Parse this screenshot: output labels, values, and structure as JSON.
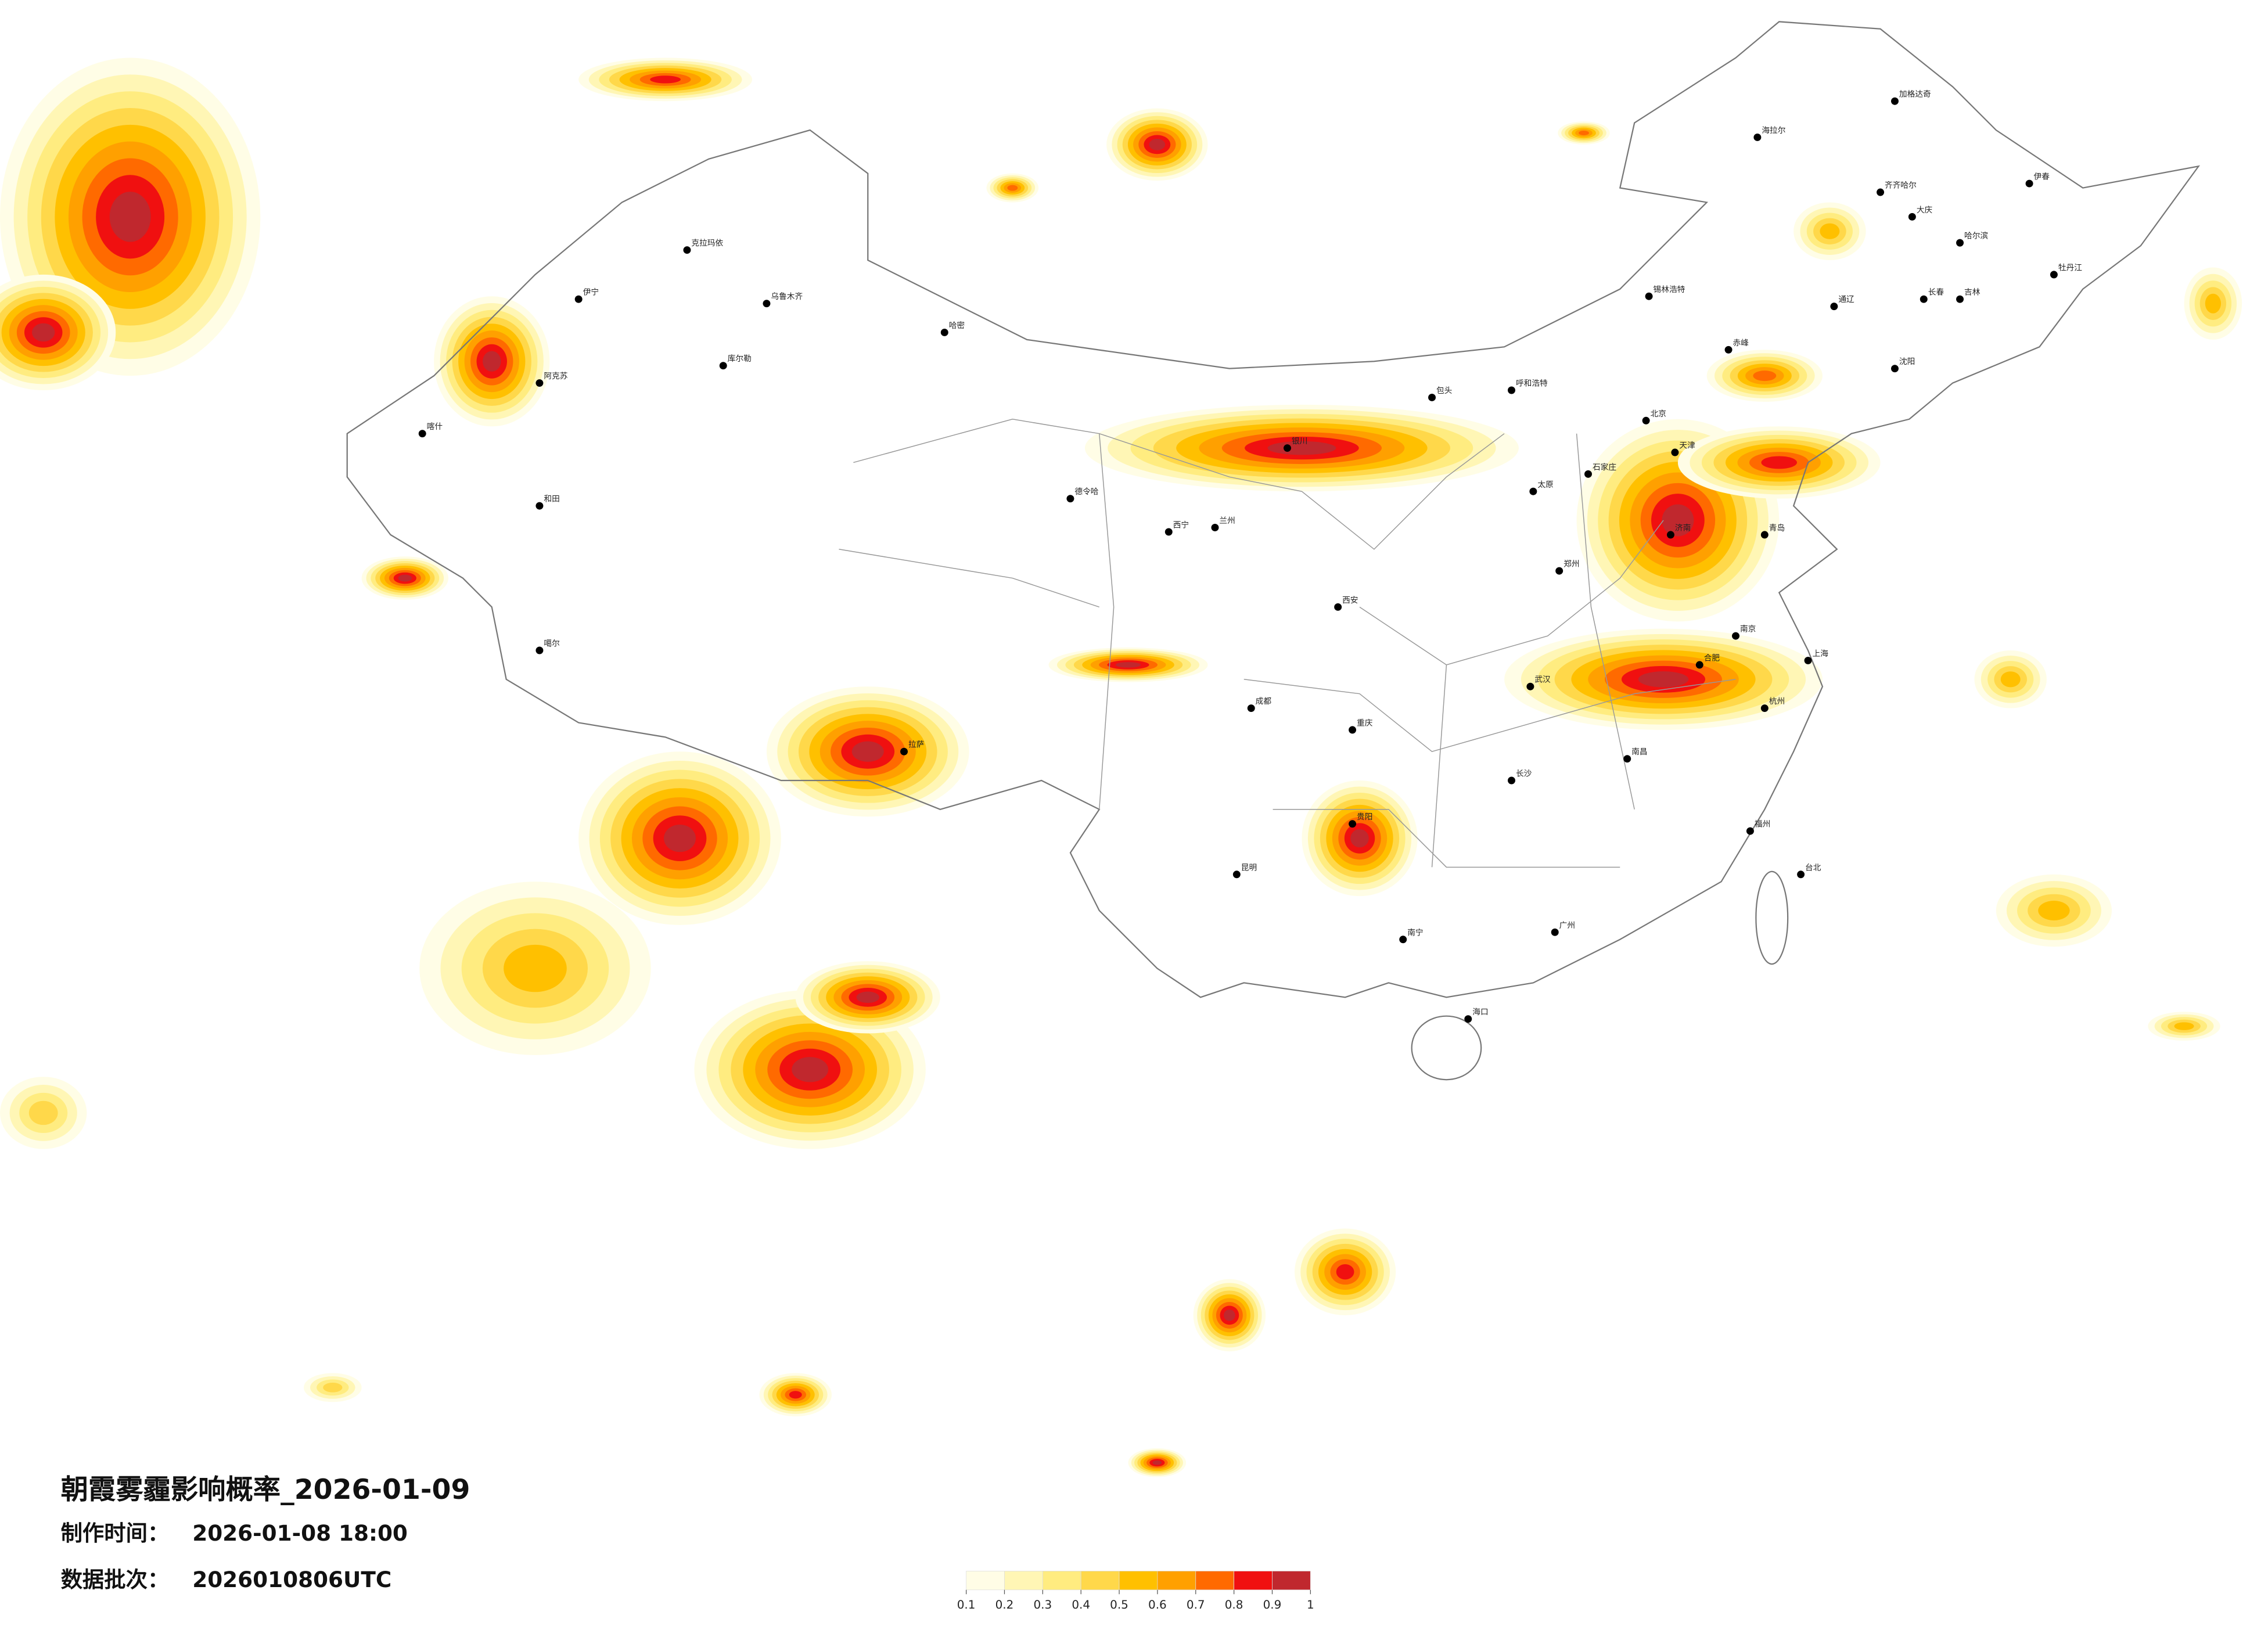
{
  "header": {
    "title": "朝霞雾霾影响概率_2026-01-09",
    "made_label": "制作时间：",
    "made_time": "2026-01-08 18:00",
    "batch_label": "数据批次：",
    "batch": "2026010806UTC"
  },
  "legend": {
    "ticks": [
      0.1,
      0.2,
      0.3,
      0.4,
      0.5,
      0.6,
      0.7,
      0.8,
      0.9,
      1
    ],
    "colors": [
      "#fffde6",
      "#fff6b5",
      "#ffec80",
      "#ffd84a",
      "#ffc000",
      "#ffa000",
      "#ff6a00",
      "#f01010",
      "#c0282e"
    ]
  },
  "cities": [
    "加格达奇",
    "海拉尔",
    "齐齐哈尔",
    "大庆",
    "哈尔滨",
    "伊春",
    "牡丹江",
    "长春",
    "吉林",
    "通辽",
    "锡林浩特",
    "赤峰",
    "沈阳",
    "北京",
    "天津",
    "石家庄",
    "太原",
    "呼和浩特",
    "包头",
    "银川",
    "兰州",
    "西宁",
    "德令哈",
    "乌鲁木齐",
    "克拉玛依",
    "伊宁",
    "阿克苏",
    "喀什",
    "和田",
    "哈密",
    "库尔勒",
    "拉萨",
    "噶尔",
    "郑州",
    "西安",
    "成都",
    "重庆",
    "武汉",
    "长沙",
    "南昌",
    "合肥",
    "南京",
    "上海",
    "杭州",
    "福州",
    "台北",
    "广州",
    "南宁",
    "海口",
    "昆明",
    "贵阳",
    "济南",
    "青岛"
  ]
}
